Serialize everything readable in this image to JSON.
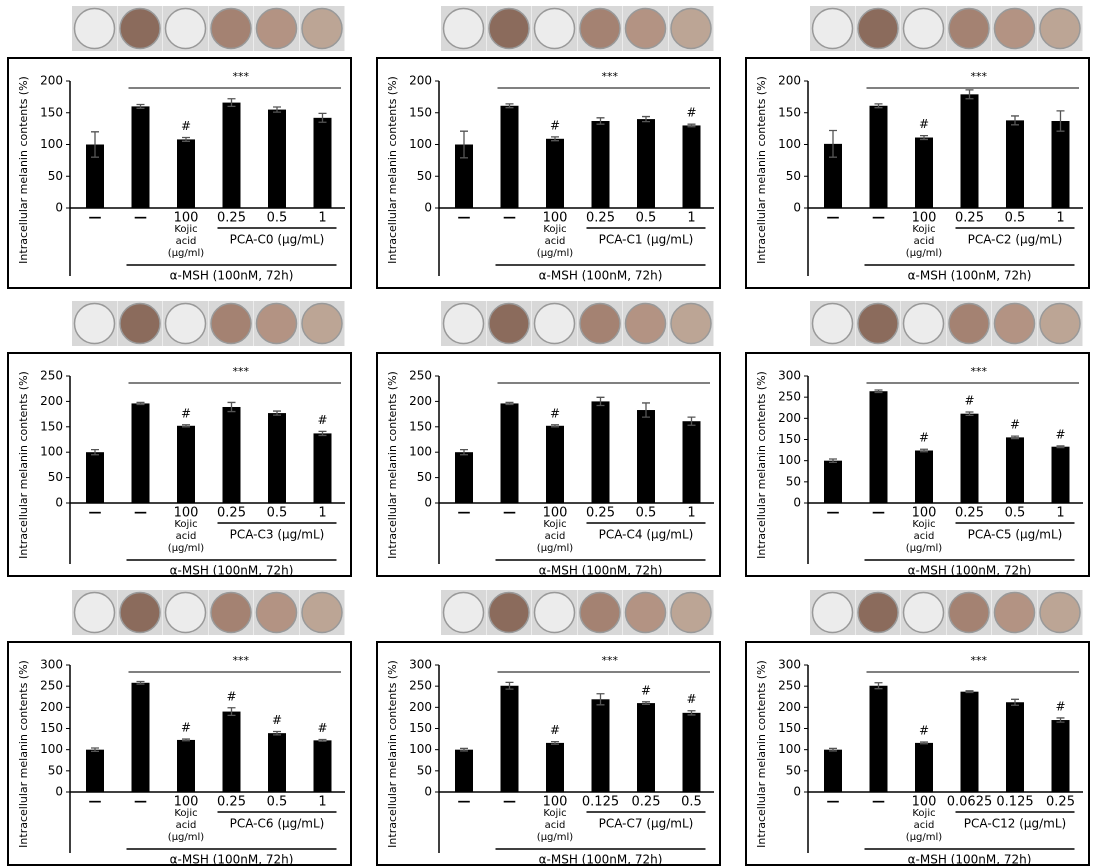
{
  "chart_data": [
    {
      "type": "bar",
      "y_label": "Intracellular melanin contents (%)",
      "color": "#000000",
      "ylim": [
        0,
        200
      ],
      "yticks": [
        0,
        50,
        100,
        150,
        200
      ],
      "categories": [
        "—",
        "—",
        "100",
        "0.25",
        "0.5",
        "1"
      ],
      "values": [
        100,
        160,
        108,
        166,
        155,
        142
      ],
      "errors": [
        20,
        3,
        3,
        6,
        4,
        7
      ],
      "hash_labels": [
        null,
        null,
        "#",
        null,
        null,
        null
      ],
      "significance": "***",
      "kojic_label": [
        "Kojic",
        "acid",
        "(μg/ml)"
      ],
      "group_label": "PCA-C0 (μg/mL)",
      "treatment_label": "α-MSH (100nM, 72h)"
    },
    {
      "type": "bar",
      "y_label": "Intracellular melanin contents (%)",
      "color": "#000000",
      "ylim": [
        0,
        200
      ],
      "yticks": [
        0,
        50,
        100,
        150,
        200
      ],
      "categories": [
        "—",
        "—",
        "100",
        "0.25",
        "0.5",
        "1"
      ],
      "values": [
        100,
        161,
        109,
        137,
        140,
        130
      ],
      "errors": [
        21,
        3,
        3,
        5,
        4,
        2
      ],
      "hash_labels": [
        null,
        null,
        "#",
        null,
        null,
        "#"
      ],
      "significance": "***",
      "kojic_label": [
        "Kojic",
        "acid",
        "(μg/ml)"
      ],
      "group_label": "PCA-C1 (μg/mL)",
      "treatment_label": "α-MSH (100nM, 72h)"
    },
    {
      "type": "bar",
      "y_label": "Intracellular melanin contents (%)",
      "color": "#000000",
      "ylim": [
        0,
        200
      ],
      "yticks": [
        0,
        50,
        100,
        150,
        200
      ],
      "categories": [
        "—",
        "—",
        "100",
        "0.25",
        "0.5",
        "1"
      ],
      "values": [
        101,
        161,
        111,
        179,
        138,
        137
      ],
      "errors": [
        21,
        3,
        3,
        7,
        7,
        16
      ],
      "hash_labels": [
        null,
        null,
        "#",
        null,
        null,
        null
      ],
      "significance": "***",
      "kojic_label": [
        "Kojic",
        "acid",
        "(μg/ml)"
      ],
      "group_label": "PCA-C2 (μg/mL)",
      "treatment_label": "α-MSH (100nM, 72h)"
    },
    {
      "type": "bar",
      "y_label": "Intracellular melanin contents (%)",
      "color": "#000000",
      "ylim": [
        0,
        250
      ],
      "yticks": [
        0,
        50,
        100,
        150,
        200,
        250
      ],
      "categories": [
        "—",
        "—",
        "100",
        "0.25",
        "0.5",
        "1"
      ],
      "values": [
        100,
        196,
        152,
        189,
        177,
        137
      ],
      "errors": [
        5,
        2,
        2,
        9,
        4,
        4
      ],
      "hash_labels": [
        null,
        null,
        "#",
        null,
        null,
        "#"
      ],
      "significance": "***",
      "kojic_label": [
        "Kojic",
        "acid",
        "(μg/ml)"
      ],
      "group_label": "PCA-C3 (μg/mL)",
      "treatment_label": "α-MSH (100nM, 72h)"
    },
    {
      "type": "bar",
      "y_label": "Intracellular melanin contents (%)",
      "color": "#000000",
      "ylim": [
        0,
        250
      ],
      "yticks": [
        0,
        50,
        100,
        150,
        200,
        250
      ],
      "categories": [
        "—",
        "—",
        "100",
        "0.25",
        "0.5",
        "1"
      ],
      "values": [
        100,
        196,
        152,
        200,
        183,
        161
      ],
      "errors": [
        5,
        2,
        2,
        8,
        14,
        8
      ],
      "hash_labels": [
        null,
        null,
        "#",
        null,
        null,
        null
      ],
      "kojic_label": [
        "Kojic",
        "acid",
        "(μg/ml)"
      ],
      "group_label": "PCA-C4 (μg/mL)",
      "treatment_label": "α-MSH (100nM, 72h)"
    },
    {
      "type": "bar",
      "y_label": "Intracellular melanin contents (%)",
      "color": "#000000",
      "ylim": [
        0,
        300
      ],
      "yticks": [
        0,
        50,
        100,
        150,
        200,
        250,
        300
      ],
      "categories": [
        "—",
        "—",
        "100",
        "0.25",
        "0.5",
        "1"
      ],
      "values": [
        100,
        264,
        124,
        211,
        155,
        133
      ],
      "errors": [
        4,
        3,
        3,
        4,
        3,
        2
      ],
      "hash_labels": [
        null,
        null,
        "#",
        "#",
        "#",
        "#"
      ],
      "significance": "***",
      "kojic_label": [
        "Kojic",
        "acid",
        "(μg/ml)"
      ],
      "group_label": "PCA-C5 (μg/mL)",
      "treatment_label": "α-MSH (100nM, 72h)"
    },
    {
      "type": "bar",
      "y_label": "Intracellular melanin contents (%)",
      "color": "#000000",
      "ylim": [
        0,
        300
      ],
      "yticks": [
        0,
        50,
        100,
        150,
        200,
        250,
        300
      ],
      "categories": [
        "—",
        "—",
        "100",
        "0.25",
        "0.5",
        "1"
      ],
      "values": [
        100,
        258,
        123,
        190,
        139,
        122
      ],
      "errors": [
        4,
        3,
        2,
        9,
        4,
        2
      ],
      "hash_labels": [
        null,
        null,
        "#",
        "#",
        "#",
        "#"
      ],
      "significance": "***",
      "kojic_label": [
        "Kojic",
        "acid",
        "(μg/ml)"
      ],
      "group_label": "PCA-C6 (μg/mL)",
      "treatment_label": "α-MSH (100nM, 72h)"
    },
    {
      "type": "bar",
      "y_label": "Intracellular melanin contents (%)",
      "color": "#000000",
      "ylim": [
        0,
        300
      ],
      "yticks": [
        0,
        50,
        100,
        150,
        200,
        250,
        300
      ],
      "categories": [
        "—",
        "—",
        "100",
        "0.125",
        "0.25",
        "0.5"
      ],
      "values": [
        100,
        251,
        116,
        219,
        210,
        187
      ],
      "errors": [
        3,
        8,
        3,
        13,
        3,
        5
      ],
      "hash_labels": [
        null,
        null,
        "#",
        null,
        "#",
        "#"
      ],
      "significance": "***",
      "kojic_label": [
        "Kojic",
        "acid",
        "(μg/ml)"
      ],
      "group_label": "PCA-C7 (μg/mL)",
      "treatment_label": "α-MSH (100nM, 72h)"
    },
    {
      "type": "bar",
      "y_label": "Intracellular melanin contents (%)",
      "color": "#000000",
      "ylim": [
        0,
        300
      ],
      "yticks": [
        0,
        50,
        100,
        150,
        200,
        250,
        300
      ],
      "categories": [
        "—",
        "—",
        "100",
        "0.0625",
        "0.125",
        "0.25"
      ],
      "values": [
        100,
        251,
        116,
        237,
        212,
        170
      ],
      "errors": [
        3,
        7,
        2,
        2,
        7,
        5
      ],
      "hash_labels": [
        null,
        null,
        "#",
        null,
        null,
        "#"
      ],
      "significance": "***",
      "kojic_label": [
        "Kojic",
        "acid",
        "(μg/ml)"
      ],
      "group_label": "PCA-C12 (μg/mL)",
      "treatment_label": "α-MSH (100nM, 72h)"
    }
  ]
}
